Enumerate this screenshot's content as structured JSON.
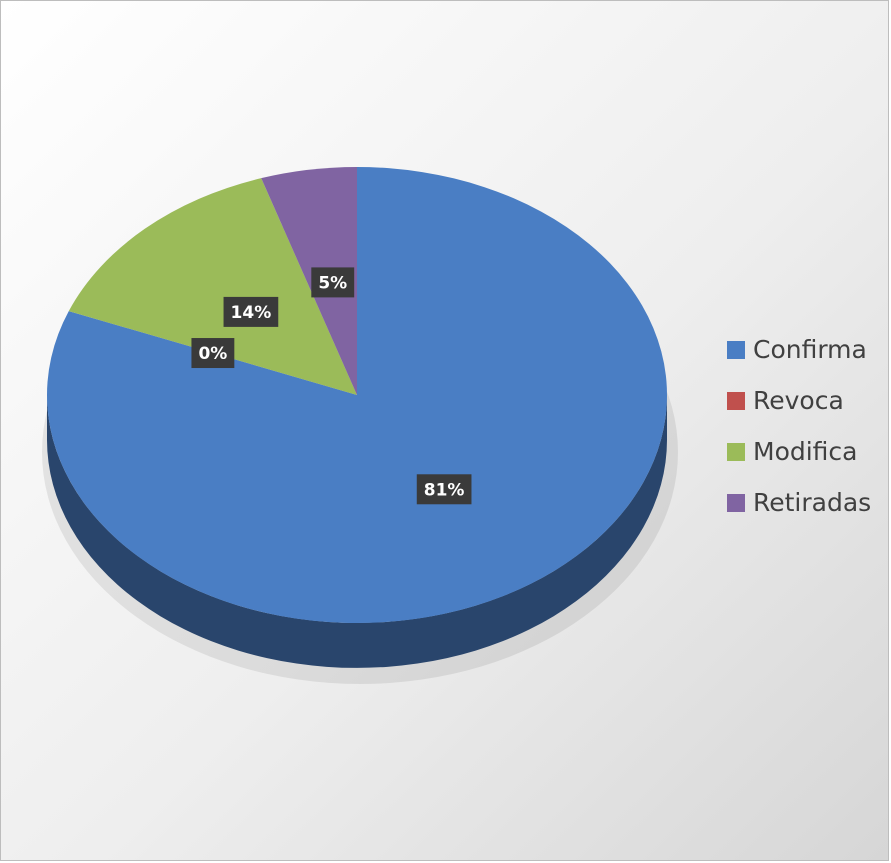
{
  "chart_data": {
    "type": "pie",
    "categories": [
      "Confirma",
      "Revoca",
      "Modifica",
      "Retiradas"
    ],
    "values": [
      81,
      0,
      14,
      5
    ],
    "value_labels": [
      "81%",
      "0%",
      "14%",
      "5%"
    ],
    "colors": [
      "#4a7ec4",
      "#c0504d",
      "#9bbb59",
      "#8064a2"
    ],
    "legend": "right"
  }
}
